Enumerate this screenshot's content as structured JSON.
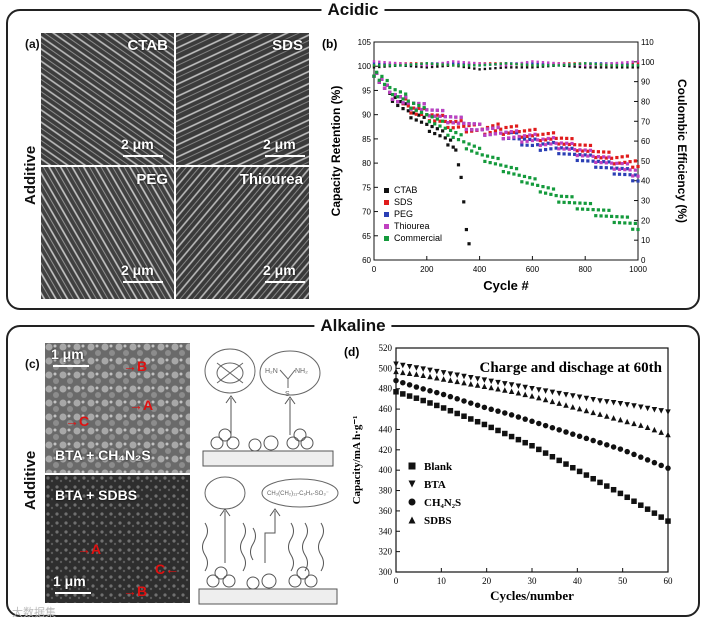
{
  "sections": {
    "top_title": "Acidic",
    "bottom_title": "Alkaline",
    "top_side_label": "Additive",
    "bottom_side_label": "Additive"
  },
  "panel_a": {
    "tag": "(a)",
    "images": [
      {
        "label": "CTAB",
        "scale": "2 μm"
      },
      {
        "label": "SDS",
        "scale": "2 μm"
      },
      {
        "label": "PEG",
        "scale": "2 μm"
      },
      {
        "label": "Thiourea",
        "scale": "2 μm"
      }
    ]
  },
  "panel_c": {
    "tag": "(c)",
    "top_image": {
      "scale": "1 μm",
      "label": "BTA + CH₄N₂S",
      "markers": [
        "B",
        "A",
        "C"
      ]
    },
    "bottom_image": {
      "scale": "1 μm",
      "label": "BTA + SDBS",
      "markers": [
        "A",
        "C",
        "B"
      ]
    }
  },
  "watermark": "大数据集",
  "chart_data": [
    {
      "panel": "(b)",
      "type": "scatter",
      "title": "",
      "xlabel": "Cycle #",
      "ylabel": "Capacity Retention (%)",
      "y2label": "Coulombic Efficiency (%)",
      "xlim": [
        0,
        1000
      ],
      "ylim": [
        60,
        105
      ],
      "y2lim": [
        0,
        110
      ],
      "xticks": [
        0,
        200,
        400,
        600,
        800,
        1000
      ],
      "yticks": [
        60,
        65,
        70,
        75,
        80,
        85,
        90,
        95,
        100,
        105
      ],
      "y2ticks": [
        0,
        10,
        20,
        30,
        40,
        50,
        60,
        70,
        80,
        90,
        100,
        110
      ],
      "legend_position": "bottom-left",
      "series": [
        {
          "name": "CTAB",
          "color": "#111111",
          "marker": "square",
          "x": [
            0,
            50,
            100,
            150,
            200,
            250,
            300,
            320,
            340,
            355,
            365
          ],
          "y": [
            99,
            95,
            92,
            90,
            88,
            86,
            84,
            80,
            72,
            65,
            61
          ]
        },
        {
          "name": "SDS",
          "color": "#e01b1b",
          "marker": "square",
          "x": [
            0,
            50,
            100,
            150,
            200,
            300,
            400,
            500,
            600,
            700,
            800,
            900,
            1000
          ],
          "y": [
            99,
            95,
            93,
            91,
            90,
            88,
            87,
            87,
            86,
            85,
            83,
            81,
            80
          ]
        },
        {
          "name": "PEG",
          "color": "#2a3fb5",
          "marker": "square",
          "x": [
            0,
            50,
            100,
            150,
            200,
            300,
            400,
            500,
            600,
            700,
            800,
            900,
            1000
          ],
          "y": [
            99,
            95,
            93,
            92,
            91,
            89,
            87,
            86,
            84,
            83,
            81,
            79,
            77
          ]
        },
        {
          "name": "Thiourea",
          "color": "#c040c0",
          "marker": "square",
          "x": [
            0,
            50,
            100,
            150,
            200,
            300,
            400,
            500,
            600,
            700,
            800,
            900,
            1000
          ],
          "y": [
            99,
            95,
            93,
            92,
            91,
            89,
            87,
            86,
            85,
            84,
            82,
            80,
            78
          ]
        },
        {
          "name": "Commercial",
          "color": "#149a3c",
          "marker": "square",
          "x": [
            0,
            50,
            100,
            150,
            200,
            300,
            400,
            500,
            600,
            700,
            800,
            900,
            1000
          ],
          "y": [
            99,
            96,
            94,
            92,
            90,
            86,
            82,
            79,
            76,
            73,
            71,
            69,
            67
          ]
        }
      ],
      "efficiency_series": [
        {
          "name": "CTAB",
          "color": "#111111",
          "x": [
            0,
            100,
            200,
            300,
            400,
            500,
            600,
            700,
            800,
            900,
            1000
          ],
          "y": [
            98,
            99,
            98,
            99,
            97,
            98,
            98,
            99,
            98,
            98,
            98
          ]
        },
        {
          "name": "SDS",
          "color": "#e01b1b",
          "x": [
            0,
            100,
            200,
            300,
            400,
            500,
            600,
            700,
            800,
            900,
            1000
          ],
          "y": [
            99,
            100,
            100,
            99,
            100,
            100,
            99,
            100,
            100,
            99,
            100
          ]
        },
        {
          "name": "PEG",
          "color": "#2a3fb5",
          "x": [
            0,
            100,
            200,
            300,
            400,
            500,
            600,
            700,
            800,
            900,
            1000
          ],
          "y": [
            100,
            99,
            100,
            100,
            99,
            100,
            100,
            99,
            100,
            100,
            99
          ]
        },
        {
          "name": "Thiourea",
          "color": "#c040c0",
          "x": [
            0,
            100,
            200,
            300,
            400,
            500,
            600,
            700,
            800,
            900,
            1000
          ],
          "y": [
            101,
            100,
            99,
            101,
            100,
            99,
            101,
            100,
            99,
            100,
            101
          ]
        },
        {
          "name": "Commercial",
          "color": "#149a3c",
          "x": [
            0,
            100,
            200,
            300,
            400,
            500,
            600,
            700,
            800,
            900,
            1000
          ],
          "y": [
            99,
            99,
            100,
            99,
            99,
            100,
            99,
            99,
            100,
            99,
            99
          ]
        }
      ]
    },
    {
      "panel": "(d)",
      "type": "scatter",
      "title": "Charge and dischage at 60th",
      "xlabel": "Cycles/number",
      "ylabel": "Capacity/mA h·g⁻¹",
      "xlim": [
        0,
        60
      ],
      "ylim": [
        300,
        520
      ],
      "xticks": [
        0,
        10,
        20,
        30,
        40,
        50,
        60
      ],
      "yticks": [
        300,
        320,
        340,
        360,
        380,
        400,
        420,
        440,
        460,
        480,
        500,
        520
      ],
      "legend_position": "bottom-left",
      "series": [
        {
          "name": "Blank",
          "color": "#111111",
          "marker": "square",
          "x": [
            0,
            5,
            10,
            15,
            20,
            25,
            30,
            35,
            40,
            45,
            50,
            55,
            60
          ],
          "y": [
            477,
            470,
            462,
            453,
            444,
            434,
            424,
            412,
            400,
            388,
            376,
            363,
            350
          ]
        },
        {
          "name": "BTA",
          "color": "#111111",
          "marker": "triangle-down",
          "x": [
            0,
            5,
            10,
            15,
            20,
            25,
            30,
            35,
            40,
            45,
            50,
            55,
            60
          ],
          "y": [
            504,
            500,
            496,
            492,
            488,
            484,
            480,
            476,
            472,
            468,
            465,
            461,
            457
          ]
        },
        {
          "name": "CH₄N₂S",
          "color": "#111111",
          "marker": "circle",
          "x": [
            0,
            5,
            10,
            15,
            20,
            25,
            30,
            35,
            40,
            45,
            50,
            55,
            60
          ],
          "y": [
            488,
            481,
            475,
            468,
            461,
            455,
            448,
            441,
            434,
            427,
            420,
            411,
            402
          ]
        },
        {
          "name": "SDBS",
          "color": "#111111",
          "marker": "triangle-up",
          "x": [
            0,
            5,
            10,
            15,
            20,
            25,
            30,
            35,
            40,
            45,
            50,
            55,
            60
          ],
          "y": [
            497,
            494,
            490,
            486,
            482,
            478,
            473,
            467,
            461,
            455,
            449,
            443,
            435
          ]
        }
      ]
    }
  ]
}
